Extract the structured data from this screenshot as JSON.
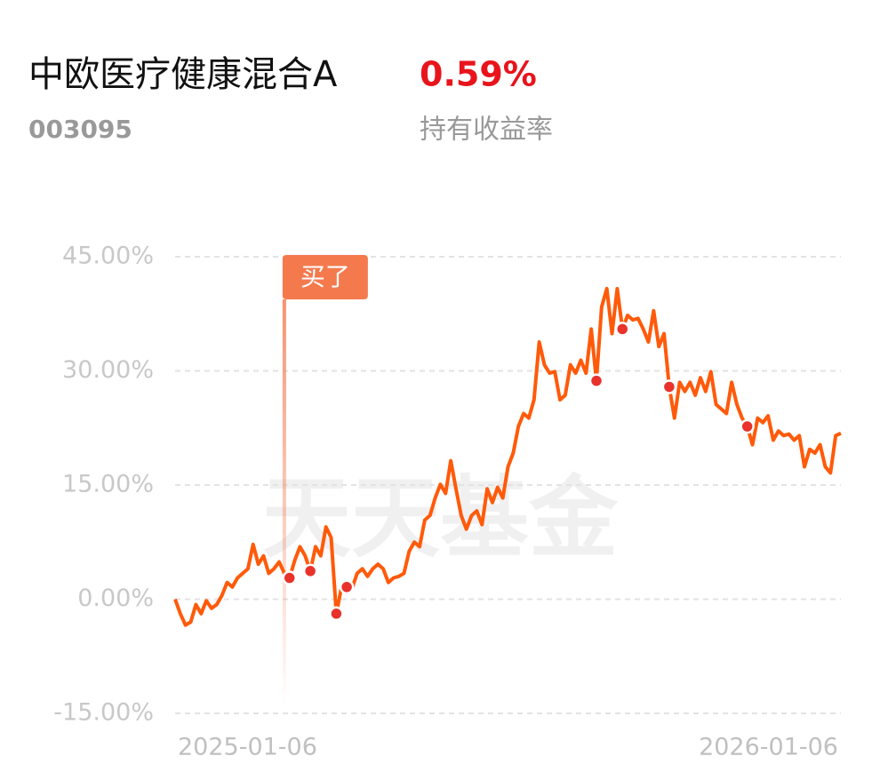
{
  "header": {
    "fund_name": "中欧医疗健康混合A",
    "return": "0.59%",
    "code": "003095",
    "return_label": "持有收益率"
  },
  "chart_data": {
    "type": "line",
    "watermark": "天天基金",
    "annotation": {
      "text": "买了",
      "index": 21
    },
    "categories": [
      "2025-01-06",
      null,
      null,
      null,
      null,
      null,
      null,
      null,
      null,
      null,
      null,
      null,
      null,
      null,
      null,
      null,
      null,
      null,
      null,
      null,
      null,
      null,
      null,
      null,
      null,
      null,
      null,
      null,
      null,
      null,
      null,
      null,
      null,
      null,
      null,
      null,
      null,
      null,
      null,
      null,
      null,
      null,
      null,
      null,
      null,
      null,
      null,
      null,
      null,
      null,
      null,
      null,
      null,
      null,
      null,
      null,
      null,
      null,
      null,
      null,
      null,
      null,
      null,
      null,
      null,
      null,
      null,
      null,
      null,
      null,
      null,
      null,
      null,
      null,
      null,
      null,
      null,
      null,
      null,
      null,
      null,
      null,
      null,
      null,
      null,
      null,
      null,
      null,
      null,
      null,
      null,
      null,
      null,
      null,
      null,
      null,
      null,
      null,
      null,
      null,
      null,
      null,
      null,
      null,
      null,
      null,
      null,
      null,
      null,
      null,
      null,
      null,
      null,
      null,
      null,
      null,
      null,
      null,
      null,
      null,
      null,
      null,
      null,
      null,
      null,
      null,
      null,
      null,
      "2026-01-06"
    ],
    "series": [
      {
        "color": "#ff5a0a",
        "marker_color": "#e8322b",
        "markers": [
          22,
          26,
          31,
          33,
          81,
          86,
          95,
          110
        ],
        "values": [
          0,
          -1.9,
          -3.4,
          -3.0,
          -0.7,
          -1.9,
          -0.2,
          -1.2,
          -0.7,
          0.5,
          2.2,
          1.6,
          2.8,
          3.4,
          4.0,
          7.2,
          4.6,
          5.7,
          3.4,
          4.0,
          4.9,
          3.4,
          2.8,
          5.1,
          6.9,
          5.7,
          3.7,
          6.9,
          5.7,
          9.5,
          8.1,
          -1.9,
          1.6,
          1.6,
          1.4,
          3.4,
          4.0,
          3.0,
          4.0,
          4.6,
          4.0,
          2.2,
          2.8,
          3.0,
          3.4,
          6.3,
          7.5,
          6.9,
          10.4,
          11.0,
          13.3,
          15.1,
          13.9,
          18.2,
          14.5,
          11.0,
          9.2,
          11.0,
          11.6,
          9.8,
          14.5,
          12.7,
          14.7,
          13.3,
          17.4,
          19.2,
          22.7,
          24.4,
          23.8,
          26.2,
          33.8,
          30.8,
          29.7,
          29.9,
          26.2,
          26.8,
          30.8,
          29.7,
          31.4,
          29.7,
          35.5,
          28.7,
          38.4,
          40.8,
          34.9,
          40.8,
          35.5,
          37.3,
          36.7,
          36.9,
          35.5,
          33.8,
          37.9,
          33.2,
          34.9,
          27.9,
          23.8,
          28.5,
          27.3,
          28.5,
          26.8,
          29.1,
          27.3,
          29.9,
          25.6,
          25.0,
          24.4,
          28.5,
          25.6,
          23.8,
          22.7,
          20.3,
          23.8,
          23.2,
          24.1,
          20.9,
          22.1,
          21.5,
          21.7,
          20.9,
          21.5,
          17.4,
          19.7,
          19.2,
          20.3,
          17.4,
          16.6,
          21.5,
          21.8
        ]
      }
    ],
    "ylim": [
      -15,
      45
    ],
    "yticks": [
      {
        "value": 45,
        "label": "45.00%"
      },
      {
        "value": 30,
        "label": "30.00%"
      },
      {
        "value": 15,
        "label": "15.00%"
      },
      {
        "value": 0,
        "label": "0.00%"
      },
      {
        "value": -15,
        "label": "-15.00%"
      }
    ],
    "grid": true
  }
}
